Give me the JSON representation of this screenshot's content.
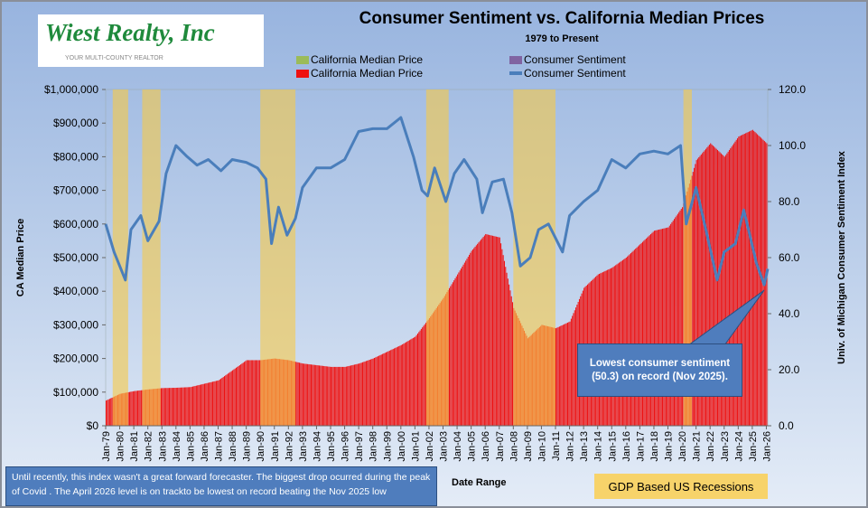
{
  "logo": {
    "name": "Wiest Realty, Inc",
    "tagline": "YOUR MULTI-COUNTY REALTOR"
  },
  "colors": {
    "price_green": "#9bbb59",
    "price_red": "#ee1111",
    "sentiment_purple": "#8064a2",
    "sentiment_blue": "#4a7ebb",
    "recession": "#f7c948"
  },
  "legend": [
    {
      "label": "California Median Price",
      "color": "#9bbb59",
      "kind": "box"
    },
    {
      "label": "Consumer Sentiment",
      "color": "#8064a2",
      "kind": "box"
    },
    {
      "label": "California Median Price",
      "color": "#ee1111",
      "kind": "box"
    },
    {
      "label": "Consumer Sentiment",
      "color": "#4a7ebb",
      "kind": "line"
    }
  ],
  "note": "Until recently, this index wasn't a great forward forecaster.  The biggest drop ocurred during the peak of Covid .  The April 2026 level is on trackto be  lowest on record beating the Nov 2025 low",
  "recession_label": "GDP Based US Recessions",
  "callout": "Lowest consumer sentiment (50.3) on  record (Nov 2025).",
  "chart_data": {
    "type": "bar",
    "title": "Consumer Sentiment vs. California Median Prices",
    "subtitle": "1979 to Present",
    "xlabel": "Date Range",
    "ylabel": "CA Median Price",
    "y2label": "Univ. of Michigan  Consumer Sentiment Index",
    "ylim": [
      0,
      1000000
    ],
    "y2lim": [
      0,
      120
    ],
    "xlim": [
      1979,
      2026.1
    ],
    "yticks": [
      "$0",
      "$100,000",
      "$200,000",
      "$300,000",
      "$400,000",
      "$500,000",
      "$600,000",
      "$700,000",
      "$800,000",
      "$900,000",
      "$1,000,000"
    ],
    "y2ticks": [
      "0.0",
      "20.0",
      "40.0",
      "60.0",
      "80.0",
      "100.0",
      "120.0"
    ],
    "xticks": [
      "Jan-79",
      "Jan-80",
      "Jan-81",
      "Jan-82",
      "Jan-83",
      "Jan-84",
      "Jan-85",
      "Jan-86",
      "Jan-87",
      "Jan-88",
      "Jan-89",
      "Jan-90",
      "Jan-91",
      "Jan-92",
      "Jan-93",
      "Jan-94",
      "Jan-95",
      "Jan-96",
      "Jan-97",
      "Jan-98",
      "Jan-99",
      "Jan-00",
      "Jan-01",
      "Jan-02",
      "Jan-03",
      "Jan-04",
      "Jan-05",
      "Jan-06",
      "Jan-07",
      "Jan-08",
      "Jan-09",
      "Jan-10",
      "Jan-11",
      "Jan-12",
      "Jan-13",
      "Jan-14",
      "Jan-15",
      "Jan-16",
      "Jan-17",
      "Jan-18",
      "Jan-19",
      "Jan-20",
      "Jan-21",
      "Jan-22",
      "Jan-23",
      "Jan-24",
      "Jan-25",
      "Jan-26"
    ],
    "recessions": [
      [
        1979.5,
        1980.6
      ],
      [
        1981.6,
        1982.9
      ],
      [
        1990.0,
        1992.5
      ],
      [
        2001.8,
        2003.4
      ],
      [
        2008.0,
        2011.0
      ],
      [
        2020.1,
        2020.7
      ]
    ],
    "series": [
      {
        "name": "California Median Price",
        "type": "bar",
        "points": [
          [
            1979,
            75000
          ],
          [
            1980,
            95000
          ],
          [
            1981,
            103000
          ],
          [
            1982,
            108000
          ],
          [
            1983,
            112000
          ],
          [
            1984,
            113000
          ],
          [
            1985,
            115000
          ],
          [
            1986,
            125000
          ],
          [
            1987,
            135000
          ],
          [
            1988,
            165000
          ],
          [
            1989,
            195000
          ],
          [
            1990,
            195000
          ],
          [
            1991,
            200000
          ],
          [
            1992,
            195000
          ],
          [
            1993,
            185000
          ],
          [
            1994,
            180000
          ],
          [
            1995,
            175000
          ],
          [
            1996,
            175000
          ],
          [
            1997,
            185000
          ],
          [
            1998,
            200000
          ],
          [
            1999,
            220000
          ],
          [
            2000,
            240000
          ],
          [
            2001,
            265000
          ],
          [
            2002,
            320000
          ],
          [
            2003,
            380000
          ],
          [
            2004,
            450000
          ],
          [
            2005,
            520000
          ],
          [
            2006,
            570000
          ],
          [
            2007,
            560000
          ],
          [
            2008,
            350000
          ],
          [
            2009,
            260000
          ],
          [
            2010,
            300000
          ],
          [
            2011,
            290000
          ],
          [
            2012,
            310000
          ],
          [
            2013,
            410000
          ],
          [
            2014,
            450000
          ],
          [
            2015,
            470000
          ],
          [
            2016,
            500000
          ],
          [
            2017,
            540000
          ],
          [
            2018,
            580000
          ],
          [
            2019,
            590000
          ],
          [
            2020,
            650000
          ],
          [
            2021,
            790000
          ],
          [
            2022,
            840000
          ],
          [
            2023,
            800000
          ],
          [
            2024,
            860000
          ],
          [
            2025,
            880000
          ],
          [
            2026,
            840000
          ]
        ]
      },
      {
        "name": "Consumer Sentiment",
        "type": "line",
        "points": [
          [
            1979,
            72
          ],
          [
            1979.6,
            62
          ],
          [
            1980.4,
            52
          ],
          [
            1980.8,
            70
          ],
          [
            1981.5,
            75
          ],
          [
            1982.0,
            66
          ],
          [
            1982.8,
            73
          ],
          [
            1983.3,
            90
          ],
          [
            1984.0,
            100
          ],
          [
            1984.8,
            96
          ],
          [
            1985.5,
            93
          ],
          [
            1986.3,
            95
          ],
          [
            1987.2,
            91
          ],
          [
            1988,
            95
          ],
          [
            1989,
            94
          ],
          [
            1989.8,
            92
          ],
          [
            1990.4,
            88
          ],
          [
            1990.8,
            65
          ],
          [
            1991.3,
            78
          ],
          [
            1991.9,
            68
          ],
          [
            1992.5,
            74
          ],
          [
            1993,
            85
          ],
          [
            1994,
            92
          ],
          [
            1995,
            92
          ],
          [
            1996,
            95
          ],
          [
            1997,
            105
          ],
          [
            1998,
            106
          ],
          [
            1999,
            106
          ],
          [
            2000,
            110
          ],
          [
            2000.9,
            96
          ],
          [
            2001.5,
            84
          ],
          [
            2001.9,
            82
          ],
          [
            2002.4,
            92
          ],
          [
            2003.2,
            80
          ],
          [
            2003.8,
            90
          ],
          [
            2004.5,
            95
          ],
          [
            2005.4,
            88
          ],
          [
            2005.8,
            76
          ],
          [
            2006.5,
            87
          ],
          [
            2007.3,
            88
          ],
          [
            2007.9,
            76
          ],
          [
            2008.5,
            57
          ],
          [
            2009.2,
            60
          ],
          [
            2009.8,
            70
          ],
          [
            2010.5,
            72
          ],
          [
            2011.5,
            62
          ],
          [
            2012,
            75
          ],
          [
            2013,
            80
          ],
          [
            2014,
            84
          ],
          [
            2015,
            95
          ],
          [
            2016,
            92
          ],
          [
            2017,
            97
          ],
          [
            2018,
            98
          ],
          [
            2019,
            97
          ],
          [
            2019.9,
            100
          ],
          [
            2020.3,
            72
          ],
          [
            2021,
            85
          ],
          [
            2021.7,
            70
          ],
          [
            2022.5,
            52
          ],
          [
            2023,
            62
          ],
          [
            2023.8,
            65
          ],
          [
            2024.4,
            77
          ],
          [
            2025.3,
            58
          ],
          [
            2025.85,
            50.3
          ],
          [
            2026.1,
            56
          ]
        ]
      }
    ]
  }
}
